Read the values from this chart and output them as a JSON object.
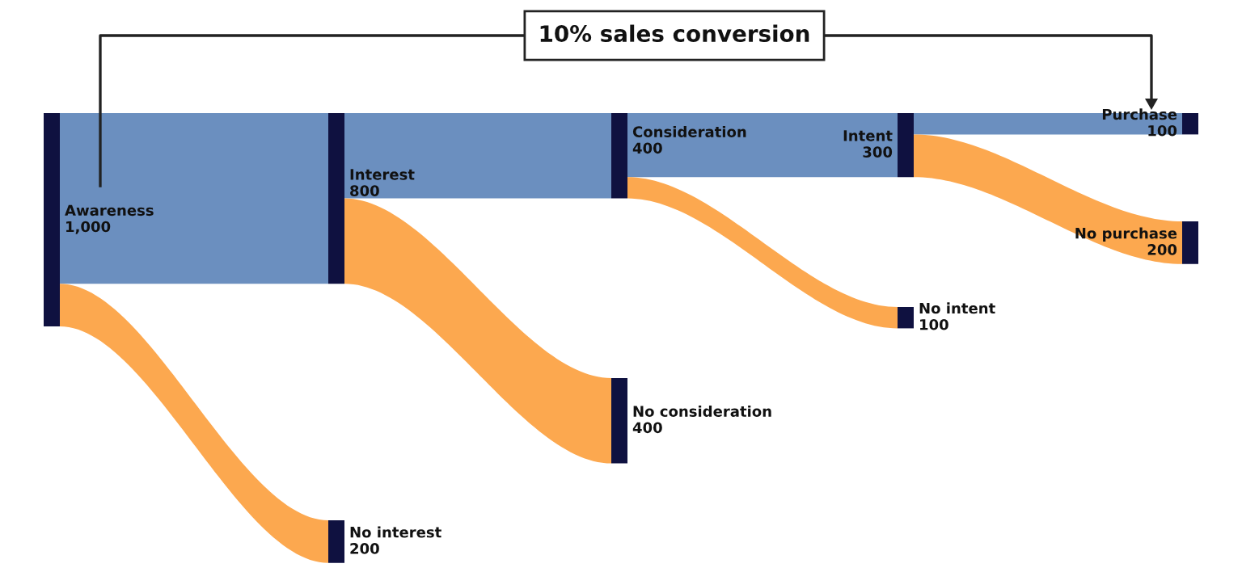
{
  "chart_data": {
    "type": "other",
    "categories": [
      "Awareness",
      "Interest",
      "No interest",
      "Consideration",
      "No consideration",
      "Intent",
      "No intent",
      "Purchase",
      "No purchase"
    ],
    "values": [
      1000,
      800,
      200,
      400,
      400,
      300,
      100,
      100,
      200
    ],
    "value_labels": [
      "1,000",
      "800",
      "200",
      "400",
      "400",
      "300",
      "100",
      "100",
      "200"
    ],
    "color": "#0f1140",
    "colors": [
      "#6b8fbf",
      "#6b8fbf",
      "#fca84f",
      "#6b8fbf",
      "#fca84f",
      "#6b8fbf",
      "#fca84f",
      "#6b8fbf",
      "#fca84f"
    ],
    "annotations": [
      "10% sales conversion"
    ]
  }
}
